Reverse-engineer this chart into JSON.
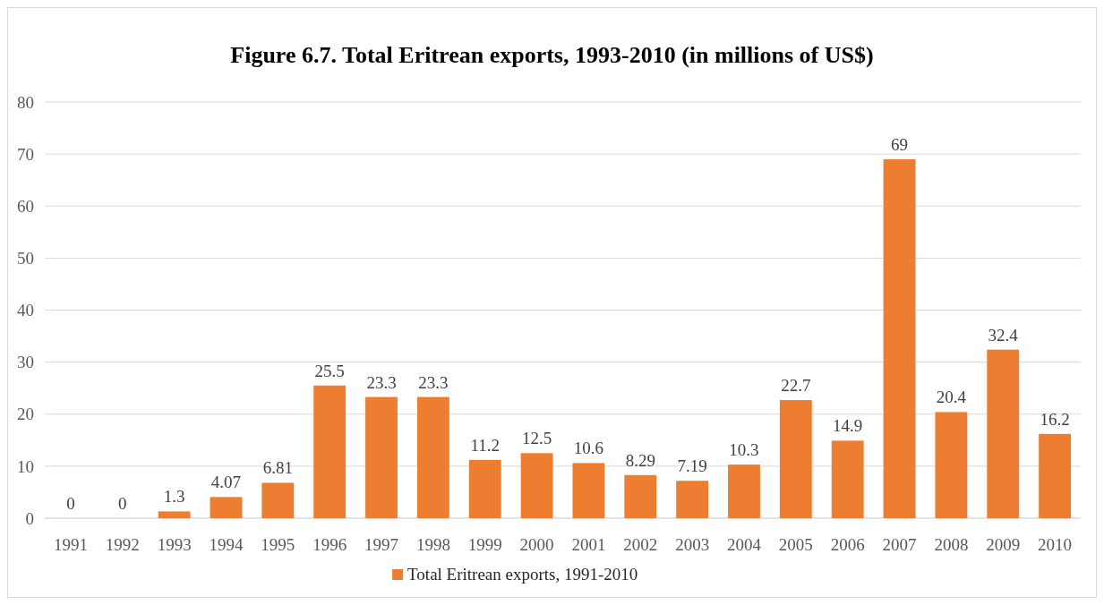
{
  "chart_data": {
    "type": "bar",
    "title": "Figure 6.7. Total Eritrean exports, 1993-2010 (in millions of US$)",
    "categories": [
      "1991",
      "1992",
      "1993",
      "1994",
      "1995",
      "1996",
      "1997",
      "1998",
      "1999",
      "2000",
      "2001",
      "2002",
      "2003",
      "2004",
      "2005",
      "2006",
      "2007",
      "2008",
      "2009",
      "2010"
    ],
    "series": [
      {
        "name": "Total Eritrean exports, 1991-2010",
        "color": "#ed7d31",
        "values": [
          0,
          0,
          1.3,
          4.07,
          6.81,
          25.5,
          23.3,
          23.3,
          11.2,
          12.5,
          10.6,
          8.29,
          7.19,
          10.3,
          22.7,
          14.9,
          69,
          20.4,
          32.4,
          16.2
        ]
      }
    ],
    "ylim": [
      0,
      80
    ],
    "yticks": [
      0,
      10,
      20,
      30,
      40,
      50,
      60,
      70,
      80
    ],
    "grid": "y",
    "data_labels": true,
    "legend": "bottom"
  }
}
